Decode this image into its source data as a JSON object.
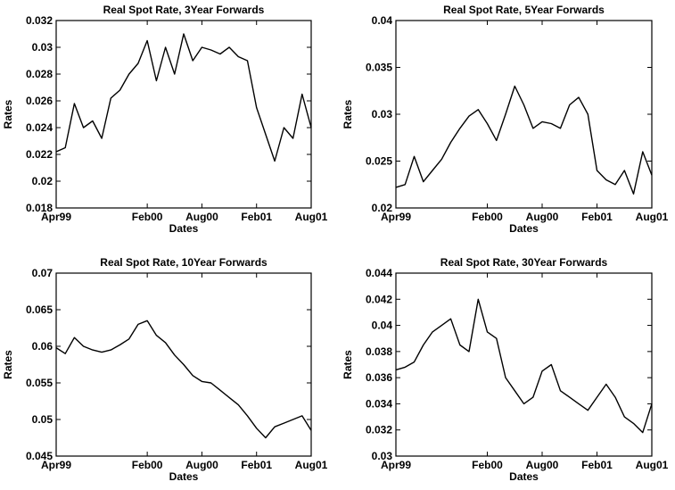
{
  "chart_data": [
    {
      "type": "line",
      "title": "Real Spot Rate, 3Year Forwards",
      "xlabel": "Dates",
      "ylabel": "Rates",
      "ylim": [
        0.018,
        0.032
      ],
      "yticks": [
        "0.018",
        "0.02",
        "0.022",
        "0.024",
        "0.026",
        "0.028",
        "0.03",
        "0.032"
      ],
      "xticks": [
        "Apr99",
        "Feb00",
        "Aug00",
        "Feb01",
        "Aug01"
      ],
      "grid": false,
      "series": [
        {
          "x": [
            "1999-04",
            "1999-05",
            "1999-06",
            "1999-07",
            "1999-08",
            "1999-09",
            "1999-10",
            "1999-11",
            "1999-12",
            "2000-01",
            "2000-02",
            "2000-03",
            "2000-04",
            "2000-05",
            "2000-06",
            "2000-07",
            "2000-08",
            "2000-09",
            "2000-10",
            "2000-11",
            "2000-12",
            "2001-01",
            "2001-02",
            "2001-03",
            "2001-04",
            "2001-05",
            "2001-06",
            "2001-07",
            "2001-08"
          ],
          "values": [
            0.0222,
            0.0225,
            0.0258,
            0.024,
            0.0245,
            0.0232,
            0.0262,
            0.0268,
            0.028,
            0.0288,
            0.0305,
            0.0275,
            0.03,
            0.028,
            0.031,
            0.029,
            0.03,
            0.0298,
            0.0295,
            0.03,
            0.0293,
            0.029,
            0.0255,
            0.0235,
            0.0215,
            0.024,
            0.0232,
            0.0265,
            0.024
          ]
        }
      ]
    },
    {
      "type": "line",
      "title": "Real Spot Rate, 5Year Forwards",
      "xlabel": "Dates",
      "ylabel": "Rates",
      "ylim": [
        0.02,
        0.04
      ],
      "yticks": [
        "0.02",
        "0.025",
        "0.03",
        "0.035",
        "0.04"
      ],
      "xticks": [
        "Apr99",
        "Feb00",
        "Aug00",
        "Feb01",
        "Aug01"
      ],
      "grid": false,
      "series": [
        {
          "x": [
            "1999-04",
            "1999-05",
            "1999-06",
            "1999-07",
            "1999-08",
            "1999-09",
            "1999-10",
            "1999-11",
            "1999-12",
            "2000-01",
            "2000-02",
            "2000-03",
            "2000-04",
            "2000-05",
            "2000-06",
            "2000-07",
            "2000-08",
            "2000-09",
            "2000-10",
            "2000-11",
            "2000-12",
            "2001-01",
            "2001-02",
            "2001-03",
            "2001-04",
            "2001-05",
            "2001-06",
            "2001-07",
            "2001-08"
          ],
          "values": [
            0.0222,
            0.0225,
            0.0255,
            0.0228,
            0.024,
            0.0252,
            0.027,
            0.0285,
            0.0298,
            0.0305,
            0.029,
            0.0272,
            0.03,
            0.033,
            0.031,
            0.0285,
            0.0292,
            0.029,
            0.0285,
            0.031,
            0.0318,
            0.03,
            0.024,
            0.023,
            0.0225,
            0.024,
            0.0215,
            0.026,
            0.0235
          ]
        }
      ]
    },
    {
      "type": "line",
      "title": "Real Spot Rate, 10Year Forwards",
      "xlabel": "Dates",
      "ylabel": "Rates",
      "ylim": [
        0.045,
        0.07
      ],
      "yticks": [
        "0.045",
        "0.05",
        "0.055",
        "0.06",
        "0.065",
        "0.07"
      ],
      "xticks": [
        "Apr99",
        "Feb00",
        "Aug00",
        "Feb01",
        "Aug01"
      ],
      "grid": false,
      "series": [
        {
          "x": [
            "1999-04",
            "1999-05",
            "1999-06",
            "1999-07",
            "1999-08",
            "1999-09",
            "1999-10",
            "1999-11",
            "1999-12",
            "2000-01",
            "2000-02",
            "2000-03",
            "2000-04",
            "2000-05",
            "2000-06",
            "2000-07",
            "2000-08",
            "2000-09",
            "2000-10",
            "2000-11",
            "2000-12",
            "2001-01",
            "2001-02",
            "2001-03",
            "2001-04",
            "2001-05",
            "2001-06",
            "2001-07",
            "2001-08"
          ],
          "values": [
            0.0598,
            0.059,
            0.0612,
            0.06,
            0.0595,
            0.0592,
            0.0595,
            0.0602,
            0.061,
            0.063,
            0.0635,
            0.0615,
            0.0605,
            0.0588,
            0.0575,
            0.056,
            0.0552,
            0.055,
            0.054,
            0.053,
            0.052,
            0.0505,
            0.0488,
            0.0475,
            0.049,
            0.0495,
            0.05,
            0.0505,
            0.0485
          ]
        }
      ]
    },
    {
      "type": "line",
      "title": "Real Spot Rate, 30Year Forwards",
      "xlabel": "Dates",
      "ylabel": "Rates",
      "ylim": [
        0.03,
        0.044
      ],
      "yticks": [
        "0.03",
        "0.032",
        "0.034",
        "0.036",
        "0.038",
        "0.04",
        "0.042",
        "0.044"
      ],
      "xticks": [
        "Apr99",
        "Feb00",
        "Aug00",
        "Feb01",
        "Aug01"
      ],
      "grid": false,
      "series": [
        {
          "x": [
            "1999-04",
            "1999-05",
            "1999-06",
            "1999-07",
            "1999-08",
            "1999-09",
            "1999-10",
            "1999-11",
            "1999-12",
            "2000-01",
            "2000-02",
            "2000-03",
            "2000-04",
            "2000-05",
            "2000-06",
            "2000-07",
            "2000-08",
            "2000-09",
            "2000-10",
            "2000-11",
            "2000-12",
            "2001-01",
            "2001-02",
            "2001-03",
            "2001-04",
            "2001-05",
            "2001-06",
            "2001-07",
            "2001-08"
          ],
          "values": [
            0.0366,
            0.0368,
            0.0372,
            0.0385,
            0.0395,
            0.04,
            0.0405,
            0.0385,
            0.038,
            0.042,
            0.0395,
            0.039,
            0.036,
            0.035,
            0.034,
            0.0345,
            0.0365,
            0.037,
            0.035,
            0.0345,
            0.034,
            0.0335,
            0.0345,
            0.0355,
            0.0345,
            0.033,
            0.0325,
            0.0318,
            0.034
          ]
        }
      ]
    }
  ]
}
